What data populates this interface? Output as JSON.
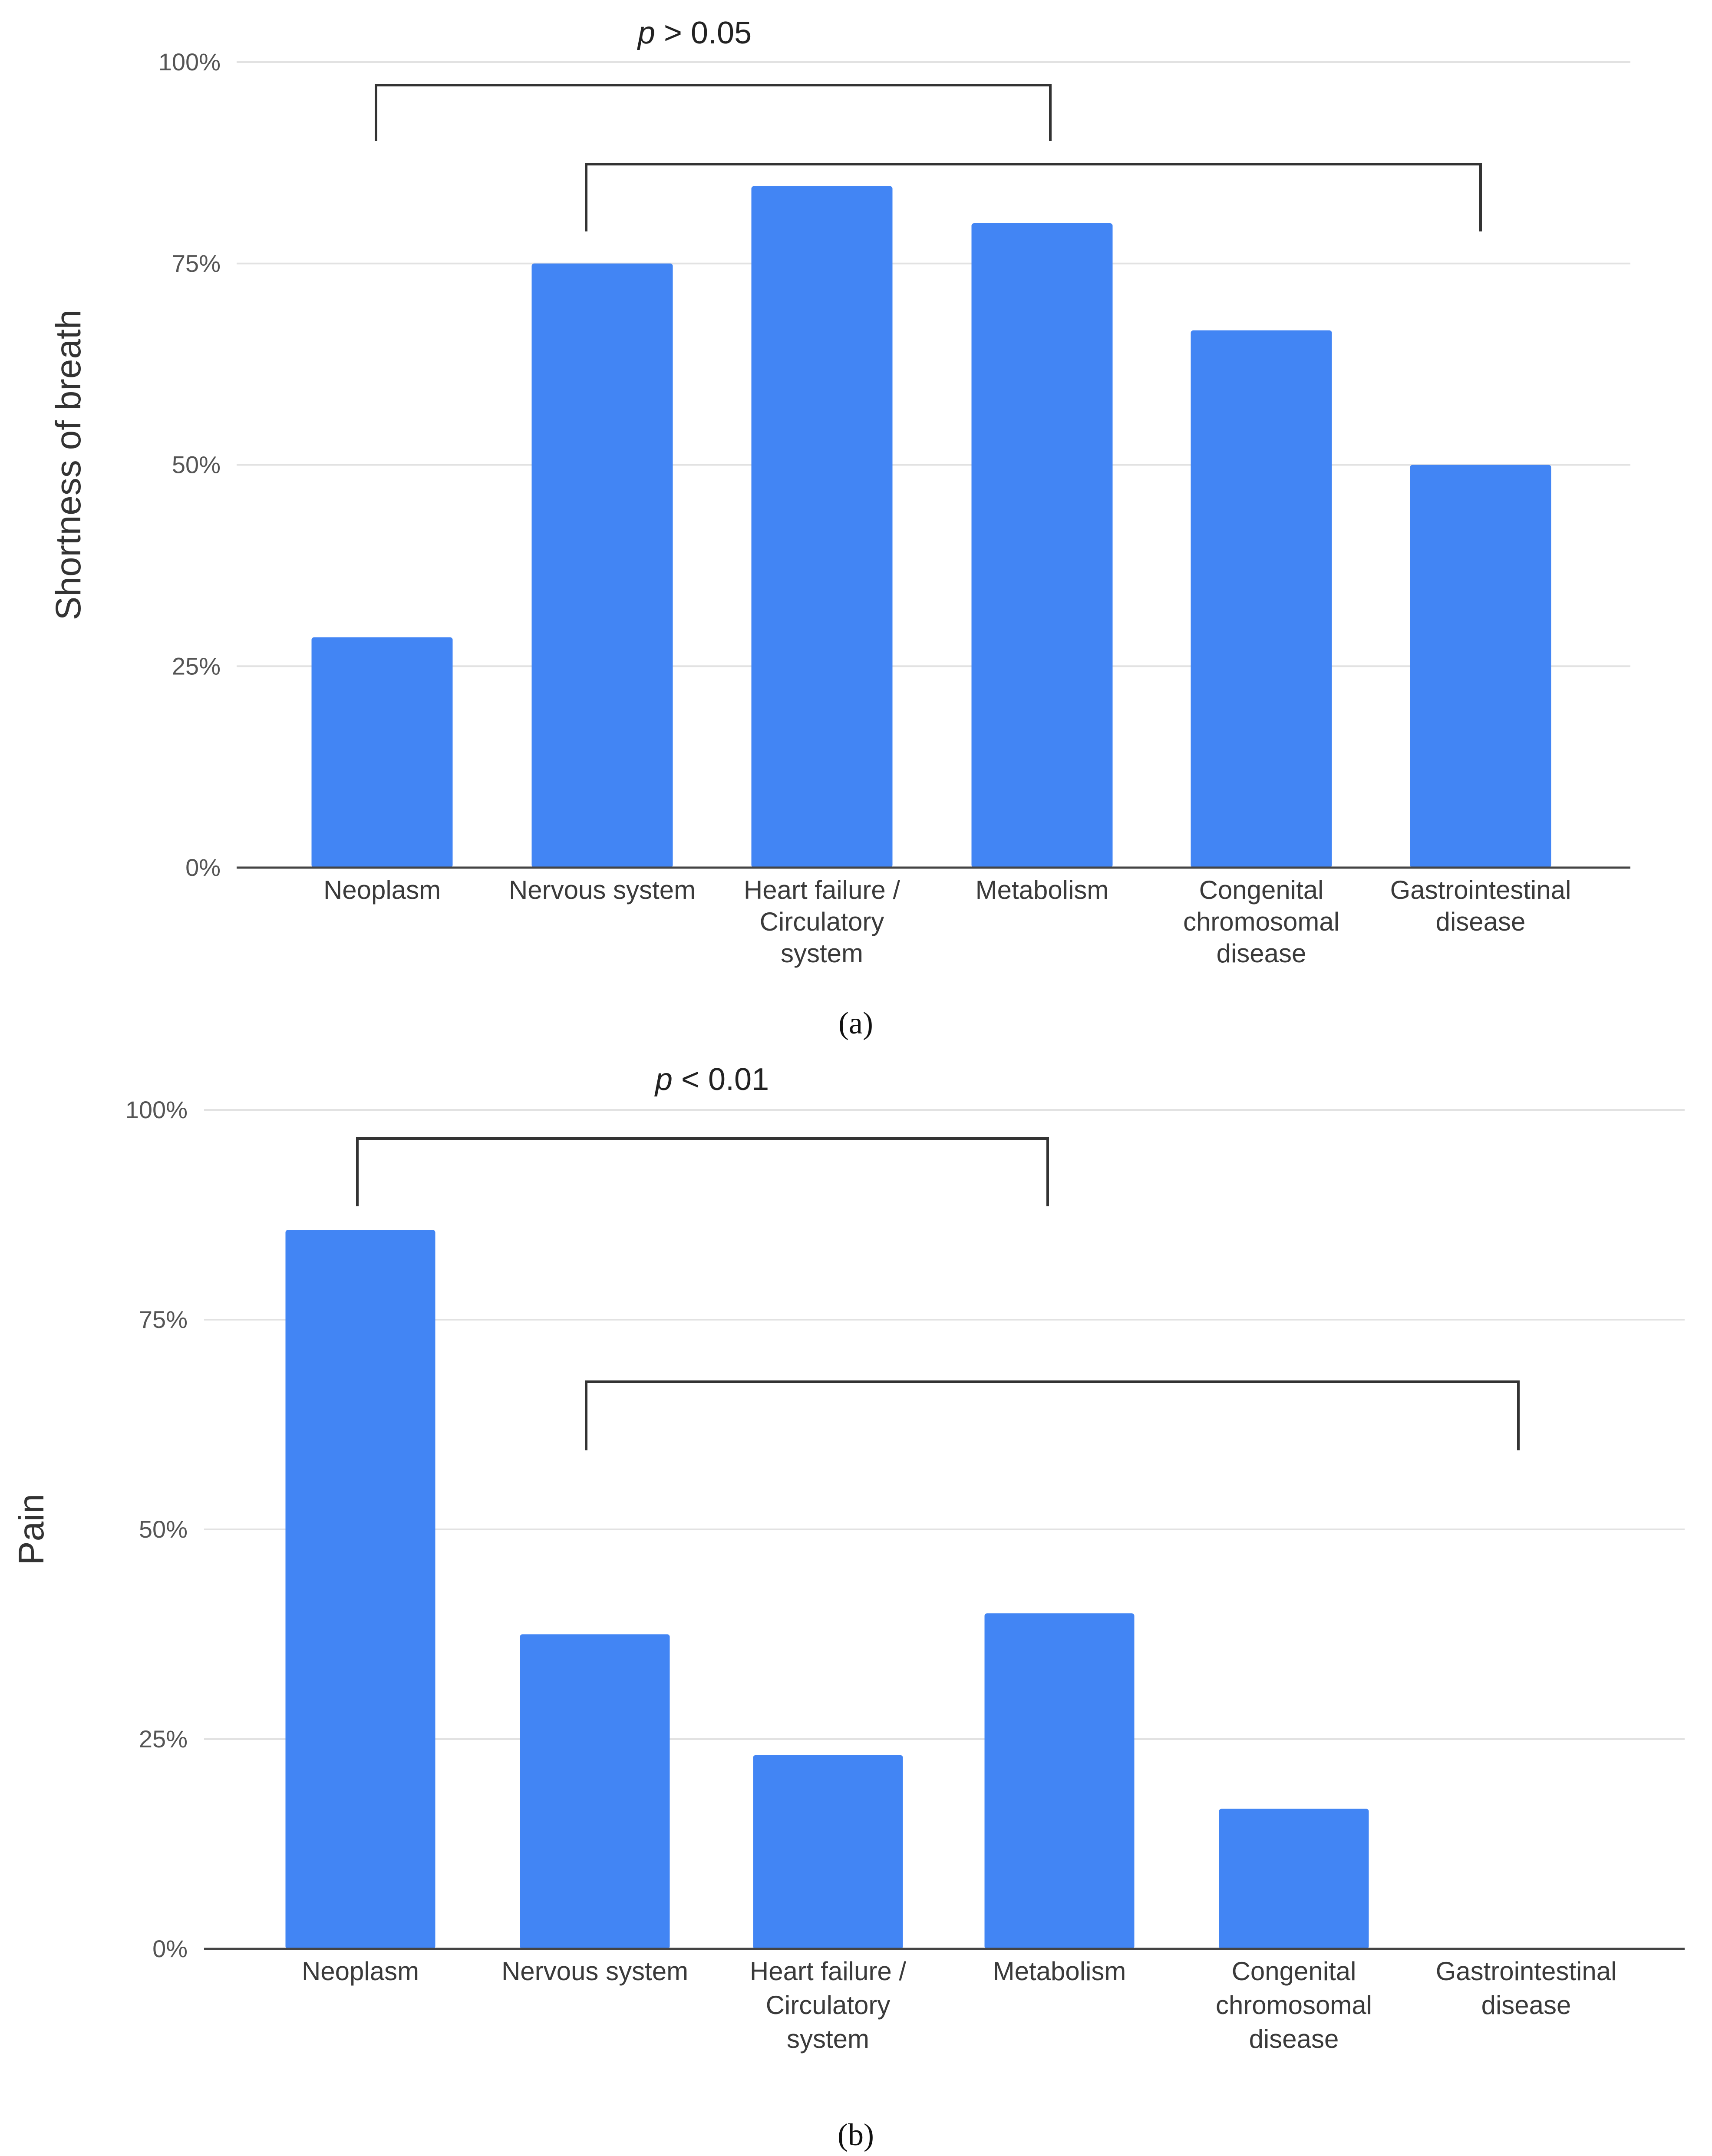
{
  "chart_data": [
    {
      "type": "bar",
      "panel": "a",
      "caption": "(a)",
      "ylabel": "Shortness of breath",
      "ylim": [
        0,
        100
      ],
      "yticks": [
        "0%",
        "25%",
        "50%",
        "75%",
        "100%"
      ],
      "categories": [
        [
          "Neoplasm"
        ],
        [
          "Nervous system"
        ],
        [
          "Heart failure /",
          "Circulatory",
          "system"
        ],
        [
          "Metabolism"
        ],
        [
          "Congenital",
          "chromosomal",
          "disease"
        ],
        [
          "Gastrointestinal",
          "disease"
        ]
      ],
      "values": [
        28.6,
        75,
        84.6,
        80,
        66.7,
        50
      ],
      "color": "#4285f4",
      "annotation": {
        "p_symbol": "p",
        "p_text": "> 0.05"
      }
    },
    {
      "type": "bar",
      "panel": "b",
      "caption": "(b)",
      "ylabel": "Pain",
      "ylim": [
        0,
        100
      ],
      "yticks": [
        "0%",
        "25%",
        "50%",
        "75%",
        "100%"
      ],
      "categories": [
        [
          "Neoplasm"
        ],
        [
          "Nervous system"
        ],
        [
          "Heart failure /",
          "Circulatory",
          "system"
        ],
        [
          "Metabolism"
        ],
        [
          "Congenital",
          "chromosomal",
          "disease"
        ],
        [
          "Gastrointestinal",
          "disease"
        ]
      ],
      "values": [
        85.7,
        37.5,
        23.1,
        40,
        16.7,
        0
      ],
      "color": "#4285f4",
      "annotation": {
        "p_symbol": "p",
        "p_text": "< 0.01"
      }
    }
  ]
}
